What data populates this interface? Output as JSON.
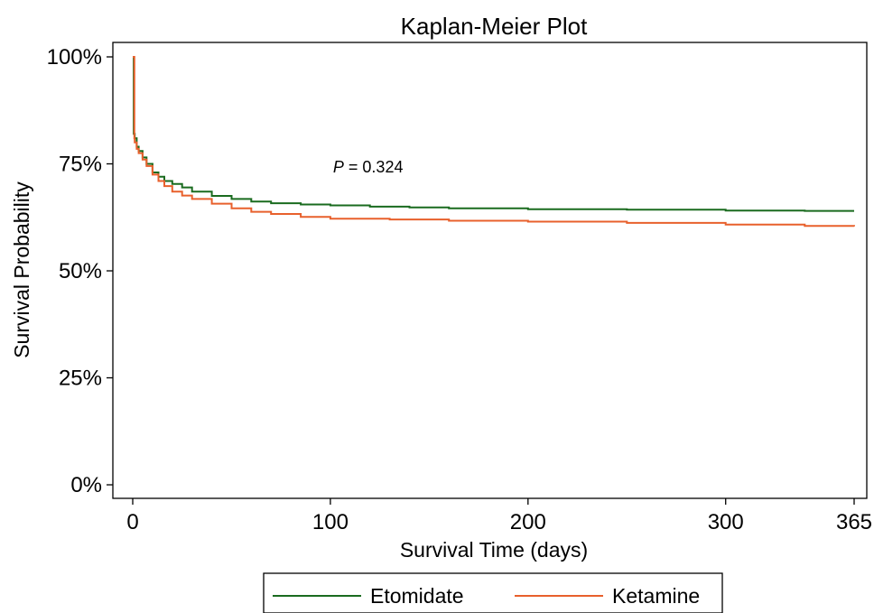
{
  "chart_data": {
    "type": "line",
    "title": "Kaplan-Meier Plot",
    "xlabel": "Survival Time (days)",
    "ylabel": "Survival Probability",
    "xlim": [
      0,
      365
    ],
    "ylim": [
      0,
      1
    ],
    "x_ticks": [
      0,
      100,
      200,
      300,
      365
    ],
    "y_ticks": [
      0,
      0.25,
      0.5,
      0.75,
      1.0
    ],
    "y_tick_labels": [
      "0%",
      "25%",
      "50%",
      "75%",
      "100%"
    ],
    "annotation": {
      "italic": "P",
      "text": " = 0.324",
      "x": 100,
      "y": 0.73
    },
    "legend_position": "bottom",
    "grid": false,
    "series": [
      {
        "name": "Etomidate",
        "color": "#1a6b1f",
        "points": [
          [
            0,
            1.0
          ],
          [
            0.5,
            1.0
          ],
          [
            0.5,
            0.82
          ],
          [
            1,
            0.81
          ],
          [
            2,
            0.79
          ],
          [
            3,
            0.78
          ],
          [
            5,
            0.765
          ],
          [
            7,
            0.75
          ],
          [
            10,
            0.73
          ],
          [
            13,
            0.72
          ],
          [
            16,
            0.71
          ],
          [
            20,
            0.703
          ],
          [
            25,
            0.695
          ],
          [
            30,
            0.685
          ],
          [
            40,
            0.675
          ],
          [
            50,
            0.668
          ],
          [
            60,
            0.662
          ],
          [
            70,
            0.658
          ],
          [
            85,
            0.655
          ],
          [
            100,
            0.653
          ],
          [
            120,
            0.65
          ],
          [
            140,
            0.648
          ],
          [
            160,
            0.646
          ],
          [
            200,
            0.644
          ],
          [
            250,
            0.643
          ],
          [
            300,
            0.641
          ],
          [
            340,
            0.64
          ],
          [
            365,
            0.64
          ]
        ]
      },
      {
        "name": "Ketamine",
        "color": "#e8602c",
        "points": [
          [
            0,
            1.0
          ],
          [
            0.8,
            1.0
          ],
          [
            0.8,
            0.81
          ],
          [
            1,
            0.8
          ],
          [
            2,
            0.785
          ],
          [
            3,
            0.775
          ],
          [
            5,
            0.76
          ],
          [
            7,
            0.745
          ],
          [
            10,
            0.725
          ],
          [
            13,
            0.71
          ],
          [
            16,
            0.698
          ],
          [
            20,
            0.685
          ],
          [
            25,
            0.676
          ],
          [
            30,
            0.668
          ],
          [
            40,
            0.657
          ],
          [
            50,
            0.646
          ],
          [
            60,
            0.638
          ],
          [
            70,
            0.633
          ],
          [
            85,
            0.626
          ],
          [
            100,
            0.622
          ],
          [
            130,
            0.62
          ],
          [
            160,
            0.617
          ],
          [
            200,
            0.615
          ],
          [
            250,
            0.612
          ],
          [
            300,
            0.608
          ],
          [
            340,
            0.605
          ],
          [
            365,
            0.604
          ]
        ]
      }
    ]
  }
}
